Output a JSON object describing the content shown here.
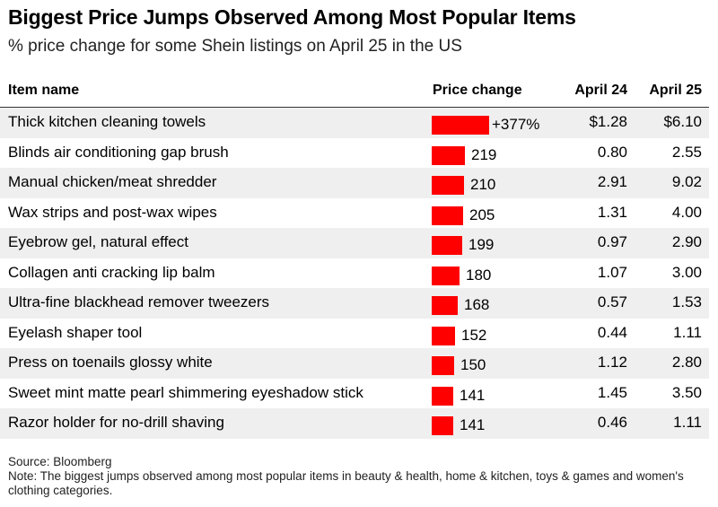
{
  "chart_data": {
    "type": "table",
    "title": "Biggest Price Jumps Observed Among Most Popular Items",
    "subtitle": "% price change for some Shein listings on April 25 in the US",
    "columns": [
      "Item name",
      "Price change",
      "April 24",
      "April 25"
    ],
    "rows": [
      {
        "item": "Thick kitchen cleaning towels",
        "change": 377,
        "change_label": "+377%",
        "apr24": "$1.28",
        "apr25": "$6.10"
      },
      {
        "item": "Blinds air conditioning gap brush",
        "change": 219,
        "change_label": "219",
        "apr24": "0.80",
        "apr25": "2.55"
      },
      {
        "item": "Manual chicken/meat shredder",
        "change": 210,
        "change_label": "210",
        "apr24": "2.91",
        "apr25": "9.02"
      },
      {
        "item": "Wax strips and post-wax wipes",
        "change": 205,
        "change_label": "205",
        "apr24": "1.31",
        "apr25": "4.00"
      },
      {
        "item": "Eyebrow gel, natural effect",
        "change": 199,
        "change_label": "199",
        "apr24": "0.97",
        "apr25": "2.90"
      },
      {
        "item": "Collagen anti cracking lip balm",
        "change": 180,
        "change_label": "180",
        "apr24": "1.07",
        "apr25": "3.00"
      },
      {
        "item": "Ultra-fine blackhead remover tweezers",
        "change": 168,
        "change_label": "168",
        "apr24": "0.57",
        "apr25": "1.53"
      },
      {
        "item": "Eyelash shaper tool",
        "change": 152,
        "change_label": "152",
        "apr24": "0.44",
        "apr25": "1.11"
      },
      {
        "item": "Press on toenails glossy white",
        "change": 150,
        "change_label": "150",
        "apr24": "1.12",
        "apr25": "2.80"
      },
      {
        "item": "Sweet mint matte pearl shimmering eyeshadow stick",
        "change": 141,
        "change_label": "141",
        "apr24": "1.45",
        "apr25": "3.50"
      },
      {
        "item": "Razor holder for no-drill shaving",
        "change": 141,
        "change_label": "141",
        "apr24": "0.46",
        "apr25": "1.11"
      }
    ],
    "bar_color": "#ff0000",
    "source": "Source: Bloomberg",
    "note": "Note: The biggest jumps observed among most popular items in beauty & health, home & kitchen, toys & games and women's clothing categories."
  }
}
